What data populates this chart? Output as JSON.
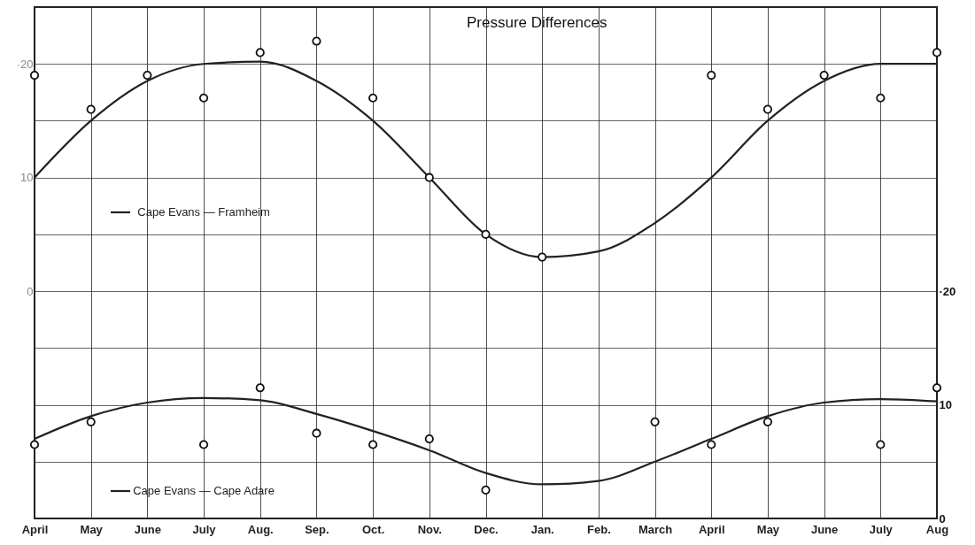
{
  "chart_data": {
    "type": "line",
    "title": "Pressure Differences",
    "categories": [
      "April",
      "May",
      "June",
      "July",
      "Aug.",
      "Sep.",
      "Oct.",
      "Nov.",
      "Dec.",
      "Jan.",
      "Feb.",
      "March",
      "April",
      "May",
      "June",
      "July",
      "Aug"
    ],
    "series": [
      {
        "name": "Cape Evans — Framheim",
        "color": "#222222",
        "values": [
          10,
          15,
          18.5,
          20,
          20.2,
          18.5,
          15,
          10,
          5,
          3,
          3.5,
          6,
          10,
          15,
          18.5,
          20,
          20
        ]
      },
      {
        "type": "scatter",
        "color": "#111111",
        "values": [
          19,
          16,
          19,
          17,
          21,
          22,
          17,
          10,
          5,
          3,
          null,
          null,
          19,
          16,
          19,
          17,
          21
        ]
      },
      {
        "name": "Cape Evans — Cape Adare",
        "axis": "y2",
        "color": "#222222",
        "values": [
          7,
          9,
          10.2,
          10.6,
          10.4,
          9.2,
          7.7,
          6,
          4,
          3,
          3.3,
          5,
          7,
          9,
          10.2,
          10.5,
          10.3
        ]
      },
      {
        "type": "scatter",
        "axis": "y2",
        "color": "#111111",
        "values": [
          6.5,
          8.5,
          null,
          6.5,
          11.5,
          7.5,
          6.5,
          7,
          2.5,
          null,
          null,
          8.5,
          6.5,
          8.5,
          null,
          6.5,
          11.5
        ]
      }
    ],
    "ylim": [
      -20,
      25
    ],
    "yticks": [
      {
        "value": -15,
        "label": null
      },
      {
        "value": -10,
        "label": null
      },
      {
        "value": -5,
        "label": null
      },
      0,
      {
        "value": 5,
        "label": null
      },
      10,
      {
        "value": 15,
        "label": null
      },
      {
        "value": 20,
        "label": "·20"
      }
    ],
    "y2lim": [
      0,
      45
    ],
    "y2ticks": [
      0,
      10,
      {
        "value": 20,
        "label": "·20"
      }
    ],
    "grid": true,
    "legend": "left"
  }
}
